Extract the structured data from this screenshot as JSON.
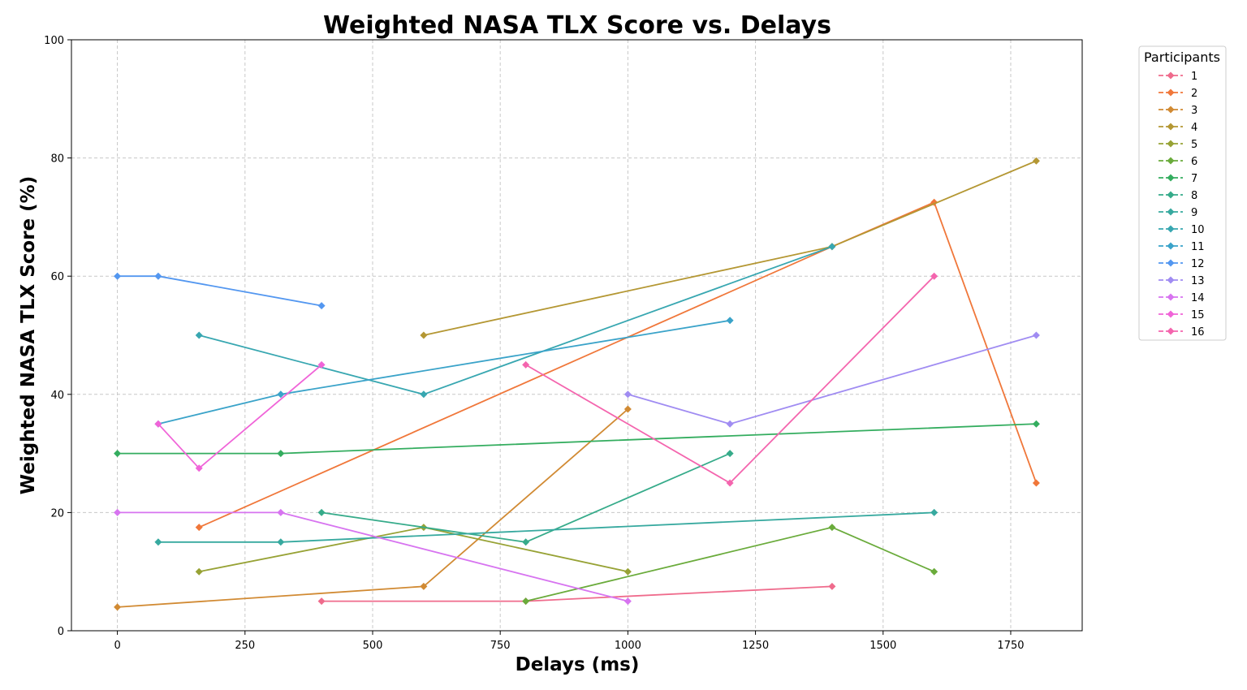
{
  "chart_data": {
    "type": "line",
    "title": "Weighted NASA TLX Score vs. Delays",
    "xlabel": "Delays (ms)",
    "ylabel": "Weighted NASA TLX Score (%)",
    "xlim": [
      -90,
      1890
    ],
    "ylim": [
      0,
      100
    ],
    "xticks": [
      0,
      250,
      500,
      750,
      1000,
      1250,
      1500,
      1750
    ],
    "yticks": [
      0,
      20,
      40,
      60,
      80,
      100
    ],
    "grid": true,
    "marker": "diamond",
    "legend": {
      "title": "Participants",
      "placement": "outside-right-top"
    },
    "series": [
      {
        "name": "1",
        "color": "#ef6b8c",
        "points": [
          [
            400,
            5
          ],
          [
            800,
            5
          ],
          [
            1400,
            7.5
          ]
        ]
      },
      {
        "name": "2",
        "color": "#f0773a",
        "points": [
          [
            160,
            17.5
          ],
          [
            1400,
            65
          ],
          [
            1600,
            72.5
          ],
          [
            1800,
            25
          ]
        ]
      },
      {
        "name": "3",
        "color": "#d18a33",
        "points": [
          [
            0,
            4
          ],
          [
            600,
            7.5
          ],
          [
            1000,
            37.5
          ]
        ]
      },
      {
        "name": "4",
        "color": "#b49733",
        "points": [
          [
            600,
            50
          ],
          [
            1400,
            65
          ],
          [
            1800,
            79.5
          ]
        ]
      },
      {
        "name": "5",
        "color": "#97a235",
        "points": [
          [
            160,
            10
          ],
          [
            600,
            17.5
          ],
          [
            1000,
            10
          ]
        ]
      },
      {
        "name": "6",
        "color": "#6aab3b",
        "points": [
          [
            800,
            5
          ],
          [
            1400,
            17.5
          ],
          [
            1600,
            10
          ]
        ]
      },
      {
        "name": "7",
        "color": "#34ad5f",
        "points": [
          [
            0,
            30
          ],
          [
            320,
            30
          ],
          [
            1800,
            35
          ]
        ]
      },
      {
        "name": "8",
        "color": "#36ab8a",
        "points": [
          [
            400,
            20
          ],
          [
            800,
            15
          ],
          [
            1200,
            30
          ]
        ]
      },
      {
        "name": "9",
        "color": "#37a99f",
        "points": [
          [
            80,
            15
          ],
          [
            320,
            15
          ],
          [
            1600,
            20
          ]
        ]
      },
      {
        "name": "10",
        "color": "#38a7b1",
        "points": [
          [
            160,
            50
          ],
          [
            600,
            40
          ],
          [
            1400,
            65
          ]
        ]
      },
      {
        "name": "11",
        "color": "#3aa3c9",
        "points": [
          [
            80,
            35
          ],
          [
            320,
            40
          ],
          [
            1200,
            52.5
          ]
        ]
      },
      {
        "name": "12",
        "color": "#5397f0",
        "points": [
          [
            0,
            60
          ],
          [
            80,
            60
          ],
          [
            400,
            55
          ]
        ]
      },
      {
        "name": "13",
        "color": "#a08cf2",
        "points": [
          [
            1000,
            40
          ],
          [
            1200,
            35
          ],
          [
            1800,
            50
          ]
        ]
      },
      {
        "name": "14",
        "color": "#d774f0",
        "points": [
          [
            0,
            20
          ],
          [
            320,
            20
          ],
          [
            1000,
            5
          ]
        ]
      },
      {
        "name": "15",
        "color": "#f064d8",
        "points": [
          [
            80,
            35
          ],
          [
            160,
            27.5
          ],
          [
            400,
            45
          ]
        ]
      },
      {
        "name": "16",
        "color": "#f465ae",
        "points": [
          [
            800,
            45
          ],
          [
            1200,
            25
          ],
          [
            1600,
            60
          ]
        ]
      }
    ]
  }
}
